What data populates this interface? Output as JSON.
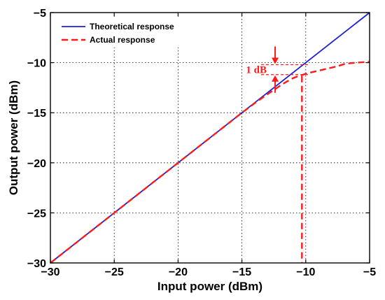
{
  "chart_data": {
    "type": "line",
    "title": "",
    "xlabel": "Input power (dBm)",
    "ylabel": "Output power (dBm)",
    "xlim": [
      -30,
      -5
    ],
    "ylim": [
      -30,
      -5
    ],
    "x_ticks": [
      -30,
      -25,
      -20,
      -15,
      -10,
      -5
    ],
    "y_ticks": [
      -30,
      -25,
      -20,
      -15,
      -10,
      -5
    ],
    "x_tick_labels": [
      "−30",
      "−25",
      "−20",
      "−15",
      "−10",
      "−5"
    ],
    "y_tick_labels": [
      "−30",
      "−25",
      "−20",
      "−15",
      "−10",
      "−5"
    ],
    "grid": true,
    "grid_style": "dotted",
    "legend_position": "top-left",
    "series": [
      {
        "name": "Theoretical response",
        "color": "#1f1fd6",
        "style": "solid",
        "x": [
          -30,
          -5
        ],
        "y": [
          -30,
          -5
        ]
      },
      {
        "name": "Actual response",
        "color": "#ff1a1a",
        "style": "dashed",
        "x": [
          -30,
          -25,
          -20,
          -15,
          -14,
          -13,
          -12,
          -11.5,
          -11,
          -10.5,
          -10.2,
          -10,
          -9.5,
          -9,
          -8.5,
          -8,
          -7.5,
          -7,
          -6.5,
          -6,
          -5.5,
          -5
        ],
        "y": [
          -30,
          -25,
          -20,
          -15,
          -14.05,
          -13.15,
          -12.3,
          -11.9,
          -11.55,
          -11.3,
          -11.2,
          -11.1,
          -10.95,
          -10.8,
          -10.65,
          -10.5,
          -10.35,
          -10.15,
          -10.05,
          -10.0,
          -9.95,
          -9.9
        ]
      }
    ],
    "annotations": [
      {
        "text": "1 dB",
        "color": "#ff1a1a",
        "ref_upper_y": -10.2,
        "ref_lower_y": -11.2,
        "arrow_x": -12.4,
        "compression_input_x": -10.3
      }
    ]
  }
}
